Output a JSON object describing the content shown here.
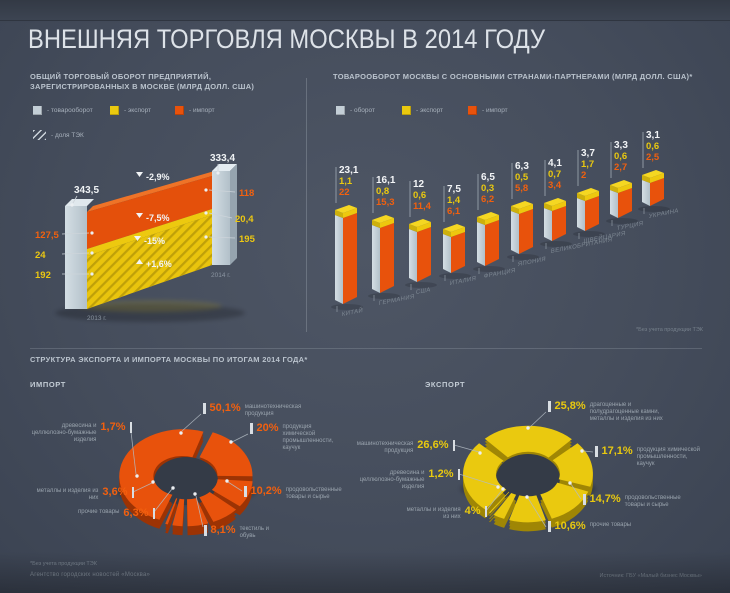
{
  "title": "ВНЕШНЯЯ ТОРГОВЛЯ МОСКВЫ В 2014 ГОДУ",
  "colors": {
    "background": "#454d5c",
    "orange": "#e8520c",
    "orange_dark": "#9c3304",
    "yellow": "#eac90f",
    "yellow_dark": "#9f8605",
    "steel": "#c3ced6",
    "text_light": "#eef1f4",
    "text_muted": "#99a3ad"
  },
  "turnover_chart": {
    "heading": "ОБЩИЙ ТОРГОВЫЙ ОБОРОТ ПРЕДПРИЯТИЙ, ЗАРЕГИСТРИРОВАННЫХ В МОСКВЕ (МЛРД ДОЛЛ. США)",
    "legend": [
      {
        "label": "- товарооборот",
        "color": "#c3ced6"
      },
      {
        "label": "- экспорт",
        "color": "#eac90f"
      },
      {
        "label": "- импорт",
        "color": "#e8520c"
      }
    ],
    "tek_legend": "- доля ТЭК",
    "years": [
      {
        "label": "2013 г.",
        "total": "343,5",
        "import": "127,5",
        "export": "24",
        "export_tek": "192"
      },
      {
        "label": "2014 г.",
        "total": "333,4",
        "import": "118",
        "export": "20,4",
        "export_tek": "195"
      }
    ],
    "changes": [
      {
        "value": "-2,9%"
      },
      {
        "value": "-7,5%"
      },
      {
        "value": "-15%"
      },
      {
        "value": "+1,6%"
      }
    ]
  },
  "partners_chart": {
    "heading": "ТОВАРООБОРОТ МОСКВЫ С ОСНОВНЫМИ СТРАНАМИ-ПАРТНЕРАМИ (МЛРД ДОЛЛ. США)*",
    "legend": [
      {
        "label": "- оборот",
        "color": "#c3ced6"
      },
      {
        "label": "- экспорт",
        "color": "#eac90f"
      },
      {
        "label": "- импорт",
        "color": "#e8520c"
      }
    ],
    "footnote": "*Без учета продукции ТЭК",
    "countries": [
      {
        "name": "КИТАЙ",
        "turnover": "23,1",
        "export": "1,1",
        "import": "22"
      },
      {
        "name": "ГЕРМАНИЯ",
        "turnover": "16,1",
        "export": "0,8",
        "import": "15,3"
      },
      {
        "name": "США",
        "turnover": "12",
        "export": "0,6",
        "import": "11,4"
      },
      {
        "name": "ИТАЛИЯ",
        "turnover": "7,5",
        "export": "1,4",
        "import": "6,1"
      },
      {
        "name": "ФРАНЦИЯ",
        "turnover": "6,5",
        "export": "0,3",
        "import": "6,2"
      },
      {
        "name": "ЯПОНИЯ",
        "turnover": "6,3",
        "export": "0,5",
        "import": "5,8"
      },
      {
        "name": "ВЕЛИКОБРИТАНИЯ",
        "turnover": "4,1",
        "export": "0,7",
        "import": "3,4"
      },
      {
        "name": "ШВЕЙЦАРИЯ",
        "turnover": "3,7",
        "export": "1,7",
        "import": "2"
      },
      {
        "name": "ТУРЦИЯ",
        "turnover": "3,3",
        "export": "0,6",
        "import": "2,7"
      },
      {
        "name": "УКРАИНА",
        "turnover": "3,1",
        "export": "0,6",
        "import": "2,5"
      }
    ]
  },
  "structure": {
    "heading": "СТРУКТУРА ЭКСПОРТА И ИМПОРТА МОСКВЫ ПО ИТОГАМ 2014 ГОДА*",
    "import": {
      "heading": "ИМПОРТ",
      "segments": [
        {
          "pct": "50,1%",
          "value": 50.1,
          "label": "машинотехническая продукция"
        },
        {
          "pct": "20%",
          "value": 20,
          "label": "продукция химической промышленности, каучук"
        },
        {
          "pct": "10,2%",
          "value": 10.2,
          "label": "продовольственные товары и сырье"
        },
        {
          "pct": "8,1%",
          "value": 8.1,
          "label": "текстиль и обувь"
        },
        {
          "pct": "6,3%",
          "value": 6.3,
          "label": "прочие товары"
        },
        {
          "pct": "3,6%",
          "value": 3.6,
          "label": "металлы и изделия из них"
        },
        {
          "pct": "1,7%",
          "value": 1.7,
          "label": "древесина и целлюлозно-бумажные изделия"
        }
      ]
    },
    "export": {
      "heading": "ЭКСПОРТ",
      "segments": [
        {
          "pct": "25,8%",
          "value": 25.8,
          "label": "драгоценные и полудрагоценные камни, металлы и изделия из них"
        },
        {
          "pct": "17,1%",
          "value": 17.1,
          "label": "продукция химической промышленности, каучук"
        },
        {
          "pct": "14,7%",
          "value": 14.7,
          "label": "продовольственные товары и сырье"
        },
        {
          "pct": "10,6%",
          "value": 10.6,
          "label": "прочие товары"
        },
        {
          "pct": "4%",
          "value": 4,
          "label": "металлы и изделия из них"
        },
        {
          "pct": "1,2%",
          "value": 1.2,
          "label": "древесина и целлюлозно-бумажные изделия"
        },
        {
          "pct": "26,6%",
          "value": 26.6,
          "label": "машинотехническая продукция"
        }
      ]
    }
  },
  "footer": {
    "footnote": "*Без учета продукции ТЭК",
    "agency": "Агентство городских новостей «Москва»",
    "source": "Источник: ГБУ «Малый бизнес Москвы»"
  },
  "chart_data": [
    {
      "type": "bar",
      "title": "ОБЩИЙ ТОРГОВЫЙ ОБОРОТ ПРЕДПРИЯТИЙ, ЗАРЕГИСТРИРОВАННЫХ В МОСКВЕ (МЛРД ДОЛЛ. США)",
      "categories": [
        "2013",
        "2014"
      ],
      "series": [
        {
          "name": "товарооборот",
          "values": [
            343.5,
            333.4
          ]
        },
        {
          "name": "импорт",
          "values": [
            127.5,
            118
          ]
        },
        {
          "name": "экспорт (без ТЭК)",
          "values": [
            24,
            20.4
          ]
        },
        {
          "name": "экспорт ТЭК",
          "values": [
            192,
            195
          ]
        }
      ],
      "annotations": [
        "-2,9%",
        "-7,5%",
        "-15%",
        "+1,6%"
      ]
    },
    {
      "type": "bar",
      "title": "ТОВАРООБОРОТ МОСКВЫ С ОСНОВНЫМИ СТРАНАМИ-ПАРТНЕРАМИ (МЛРД ДОЛЛ. США)",
      "categories": [
        "КИТАЙ",
        "ГЕРМАНИЯ",
        "США",
        "ИТАЛИЯ",
        "ФРАНЦИЯ",
        "ЯПОНИЯ",
        "ВЕЛИКОБРИТАНИЯ",
        "ШВЕЙЦАРИЯ",
        "ТУРЦИЯ",
        "УКРАИНА"
      ],
      "series": [
        {
          "name": "оборот",
          "values": [
            23.1,
            16.1,
            12,
            7.5,
            6.5,
            6.3,
            4.1,
            3.7,
            3.3,
            3.1
          ]
        },
        {
          "name": "экспорт",
          "values": [
            1.1,
            0.8,
            0.6,
            1.4,
            0.3,
            0.5,
            0.7,
            1.7,
            0.6,
            0.6
          ]
        },
        {
          "name": "импорт",
          "values": [
            22,
            15.3,
            11.4,
            6.1,
            6.2,
            5.8,
            3.4,
            2,
            2.7,
            2.5
          ]
        }
      ]
    },
    {
      "type": "pie",
      "title": "ИМПОРТ",
      "labels": [
        "машинотехническая продукция",
        "продукция химической промышленности, каучук",
        "продовольственные товары и сырье",
        "текстиль и обувь",
        "прочие товары",
        "металлы и изделия из них",
        "древесина и целлюлозно-бумажные изделия"
      ],
      "values": [
        50.1,
        20,
        10.2,
        8.1,
        6.3,
        3.6,
        1.7
      ]
    },
    {
      "type": "pie",
      "title": "ЭКСПОРТ",
      "labels": [
        "драгоценные и полудрагоценные камни, металлы и изделия из них",
        "продукция химической промышленности, каучук",
        "продовольственные товары и сырье",
        "прочие товары",
        "металлы и изделия из них",
        "древесина и целлюлозно-бумажные изделия",
        "машинотехническая продукция"
      ],
      "values": [
        25.8,
        17.1,
        14.7,
        10.6,
        4,
        1.2,
        26.6
      ]
    }
  ]
}
